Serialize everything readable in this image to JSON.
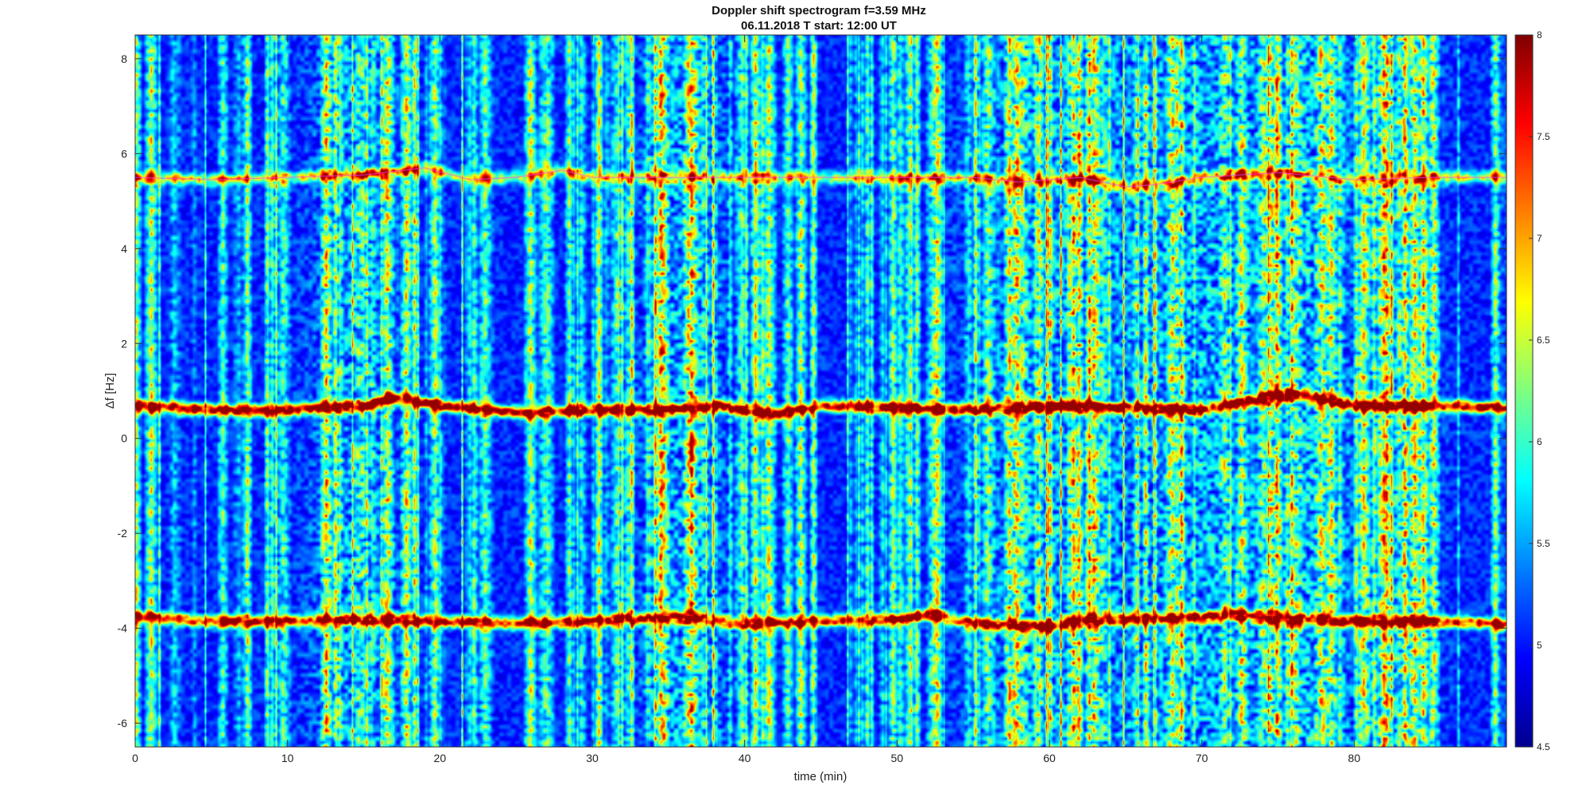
{
  "chart_data": {
    "type": "heatmap",
    "title": "Doppler shift spectrogram f=3.59 MHz",
    "subtitle": "06.11.2018   T start: 12:00 UT",
    "xlabel": "time (min)",
    "ylabel": "Δf [Hz]",
    "xlim": [
      0,
      90
    ],
    "ylim": [
      -6.5,
      8.5
    ],
    "xticks": [
      "0",
      "10",
      "20",
      "30",
      "40",
      "50",
      "60",
      "70",
      "80"
    ],
    "yticks": [
      "8",
      "6",
      "4",
      "2",
      "0",
      "-2",
      "-4",
      "-6"
    ],
    "colorbar": {
      "colormap": "jet",
      "range": [
        4.5,
        8
      ],
      "ticks": [
        "8",
        "7.5",
        "7",
        "6.5",
        "6",
        "5.5",
        "5",
        "4.5"
      ]
    },
    "traces": [
      {
        "x": [
          0,
          5,
          10,
          15,
          17,
          20,
          25,
          30,
          35,
          38,
          42,
          45,
          50,
          55,
          60,
          65,
          70,
          73,
          76,
          80,
          85,
          90
        ],
        "y": [
          0.7,
          0.6,
          0.6,
          0.7,
          0.85,
          0.7,
          0.55,
          0.6,
          0.6,
          0.7,
          0.5,
          0.7,
          0.65,
          0.6,
          0.7,
          0.65,
          0.6,
          0.8,
          0.95,
          0.7,
          0.7,
          0.65
        ],
        "strength": 1.0
      },
      {
        "x": [
          0,
          5,
          10,
          15,
          20,
          25,
          30,
          35,
          40,
          45,
          50,
          52,
          55,
          60,
          63,
          66,
          70,
          72,
          75,
          80,
          85,
          90
        ],
        "y": [
          -3.75,
          -3.85,
          -3.85,
          -3.8,
          -3.85,
          -3.9,
          -3.85,
          -3.75,
          -3.9,
          -3.85,
          -3.8,
          -3.7,
          -3.9,
          -3.95,
          -3.8,
          -3.8,
          -3.75,
          -3.7,
          -3.8,
          -3.85,
          -3.85,
          -3.9
        ],
        "strength": 0.9
      },
      {
        "x": [
          0,
          5,
          10,
          15,
          19,
          22,
          25,
          28,
          30,
          35,
          40,
          45,
          50,
          55,
          58,
          62,
          65,
          67,
          70,
          75,
          80,
          85,
          90
        ],
        "y": [
          5.5,
          5.45,
          5.5,
          5.55,
          5.7,
          5.45,
          5.5,
          5.65,
          5.5,
          5.5,
          5.5,
          5.5,
          5.5,
          5.5,
          5.4,
          5.5,
          5.3,
          5.35,
          5.5,
          5.6,
          5.45,
          5.5,
          5.5
        ],
        "strength": 0.55
      }
    ]
  }
}
